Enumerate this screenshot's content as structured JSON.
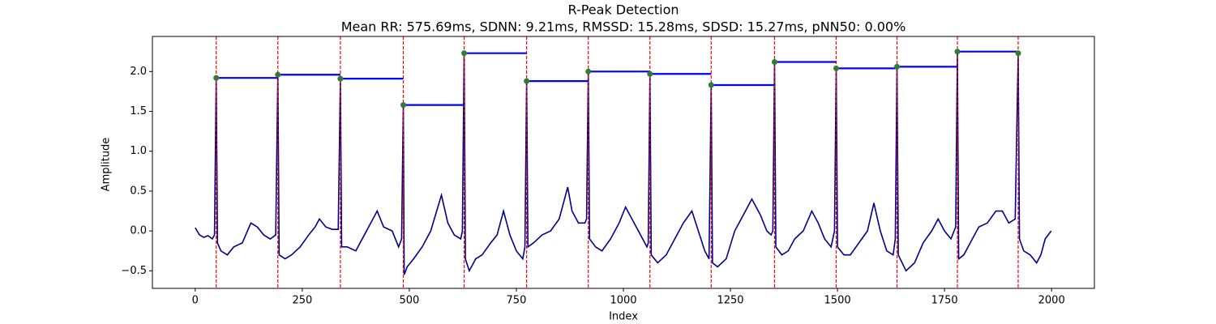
{
  "chart_data": {
    "type": "line",
    "title": "R-Peak Detection",
    "subtitle": "Mean RR: 575.69ms, SDNN: 9.21ms, RMSSD: 15.28ms, SDSD: 15.27ms, pNN50: 0.00%",
    "x_label": "Index",
    "y_label": "Amplitude",
    "xlim": [
      -100,
      2100
    ],
    "ylim": [
      -0.72,
      2.44
    ],
    "xticks": [
      0,
      250,
      500,
      750,
      1000,
      1250,
      1500,
      1750,
      2000
    ],
    "yticks": [
      {
        "value": -0.5,
        "label": "−0.5"
      },
      {
        "value": 0,
        "label": "0.0"
      },
      0.5,
      {
        "value": 1,
        "label": "1.0"
      },
      1.5,
      {
        "value": 2,
        "label": "2.0"
      }
    ],
    "series": [
      {
        "color": "#00008b",
        "x": [
          0,
          10,
          20,
          30,
          40,
          45,
          49,
          52,
          60,
          75,
          90,
          110,
          130,
          145,
          160,
          175,
          188,
          193,
          196,
          210,
          225,
          245,
          265,
          280,
          290,
          305,
          320,
          334,
          339,
          342,
          355,
          375,
          395,
          410,
          425,
          440,
          460,
          475,
          482,
          486,
          488,
          495,
          510,
          530,
          550,
          575,
          590,
          605,
          620,
          624,
          628,
          631,
          640,
          655,
          670,
          690,
          705,
          720,
          735,
          750,
          765,
          770,
          774,
          777,
          790,
          810,
          830,
          850,
          870,
          880,
          895,
          910,
          914,
          918,
          921,
          935,
          950,
          970,
          990,
          1005,
          1020,
          1040,
          1055,
          1058,
          1062,
          1065,
          1080,
          1100,
          1120,
          1140,
          1160,
          1175,
          1190,
          1200,
          1205,
          1208,
          1220,
          1240,
          1260,
          1280,
          1300,
          1320,
          1335,
          1345,
          1349,
          1353,
          1356,
          1370,
          1385,
          1400,
          1420,
          1440,
          1455,
          1470,
          1485,
          1493,
          1497,
          1500,
          1515,
          1530,
          1550,
          1570,
          1585,
          1600,
          1615,
          1630,
          1635,
          1639,
          1642,
          1660,
          1680,
          1700,
          1720,
          1735,
          1750,
          1765,
          1776,
          1780,
          1783,
          1795,
          1810,
          1830,
          1850,
          1870,
          1885,
          1900,
          1915,
          1922,
          1925,
          1935,
          1950,
          1965,
          1975,
          1985,
          1999
        ],
        "values": [
          0.04,
          -0.05,
          -0.08,
          -0.06,
          -0.1,
          -0.05,
          1.92,
          -0.15,
          -0.25,
          -0.3,
          -0.2,
          -0.15,
          0.1,
          0.05,
          -0.05,
          -0.1,
          -0.05,
          1.96,
          -0.3,
          -0.35,
          -0.3,
          -0.2,
          -0.05,
          0.05,
          0.15,
          0.05,
          0.02,
          0.02,
          1.91,
          -0.2,
          -0.2,
          -0.25,
          -0.05,
          0.1,
          0.25,
          0.05,
          0.0,
          -0.2,
          -0.1,
          1.58,
          -0.55,
          -0.45,
          -0.35,
          -0.2,
          0.0,
          0.45,
          0.1,
          -0.05,
          -0.1,
          0.0,
          2.23,
          -0.35,
          -0.5,
          -0.35,
          -0.3,
          -0.15,
          -0.05,
          0.25,
          -0.05,
          -0.25,
          -0.35,
          -0.2,
          1.88,
          -0.2,
          -0.15,
          -0.05,
          0.0,
          0.15,
          0.55,
          0.25,
          0.1,
          0.1,
          0.15,
          2.0,
          -0.1,
          -0.2,
          -0.25,
          -0.1,
          0.1,
          0.3,
          0.15,
          -0.05,
          -0.2,
          -0.15,
          1.97,
          -0.3,
          -0.4,
          -0.3,
          -0.1,
          0.1,
          0.25,
          0.0,
          -0.25,
          -0.35,
          1.83,
          -0.4,
          -0.45,
          -0.35,
          0.0,
          0.2,
          0.4,
          0.2,
          0.0,
          -0.05,
          0.0,
          2.12,
          -0.2,
          -0.3,
          -0.25,
          -0.1,
          0.0,
          0.25,
          0.1,
          -0.1,
          -0.2,
          0.0,
          2.04,
          -0.2,
          -0.3,
          -0.3,
          -0.15,
          0.0,
          0.35,
          0.0,
          -0.25,
          -0.3,
          -0.1,
          2.06,
          -0.3,
          -0.5,
          -0.4,
          -0.15,
          0.0,
          0.15,
          0.0,
          -0.1,
          0.05,
          2.25,
          -0.35,
          -0.3,
          -0.15,
          0.05,
          0.1,
          0.25,
          0.25,
          0.1,
          0.15,
          2.23,
          -0.1,
          -0.25,
          -0.3,
          -0.4,
          -0.3,
          -0.1,
          0.0
        ]
      }
    ],
    "peaks": {
      "marker_color": "#2e7d32",
      "line_color": "#ff0000",
      "interval_color": "#0000ff",
      "x": [
        49,
        193,
        339,
        486,
        628,
        774,
        918,
        1062,
        1205,
        1353,
        1497,
        1639,
        1780,
        1922
      ],
      "values": [
        1.92,
        1.96,
        1.91,
        1.58,
        2.23,
        1.88,
        2.0,
        1.97,
        1.83,
        2.12,
        2.04,
        2.06,
        2.25,
        2.23
      ]
    }
  }
}
